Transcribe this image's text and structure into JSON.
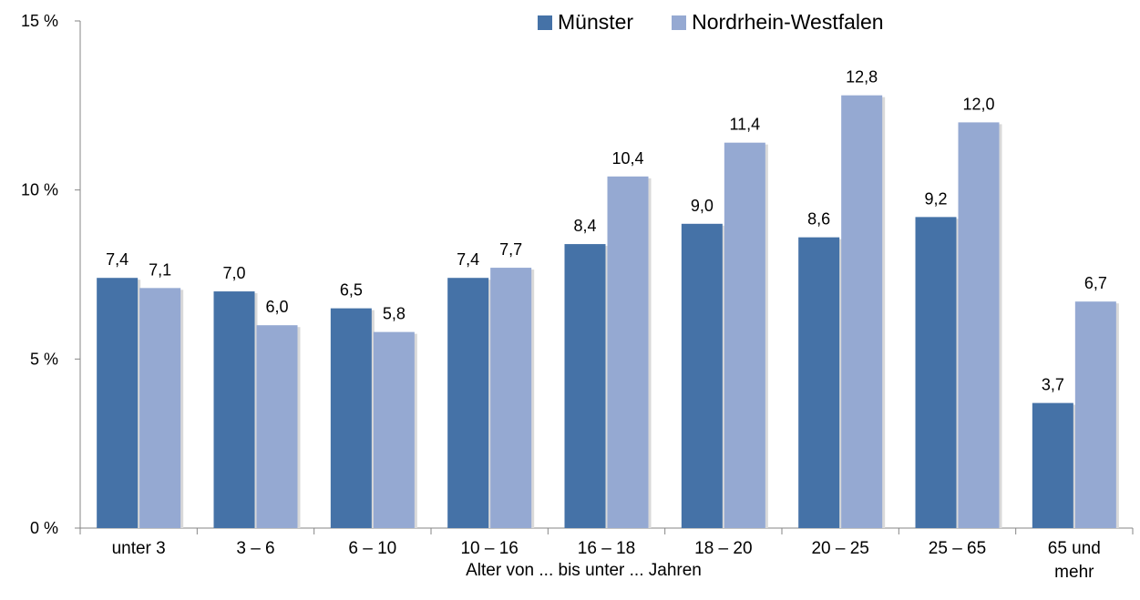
{
  "chart_data": {
    "type": "bar",
    "categories": [
      "unter 3",
      "3 –  6",
      "6 – 10",
      "10 – 16",
      "16 – 18",
      "18 – 20",
      "20 – 25",
      "25 – 65",
      "65 und mehr"
    ],
    "series": [
      {
        "name": "Münster",
        "values": [
          7.4,
          7.0,
          6.5,
          7.4,
          8.4,
          9.0,
          8.6,
          9.2,
          3.7
        ],
        "labels": [
          "7,4",
          "7,0",
          "6,5",
          "7,4",
          "8,4",
          "9,0",
          "8,6",
          "9,2",
          "3,7"
        ],
        "color": "#4572A7"
      },
      {
        "name": "Nordrhein-Westfalen",
        "values": [
          7.1,
          6.0,
          5.8,
          7.7,
          10.4,
          11.4,
          12.8,
          12.0,
          6.7
        ],
        "labels": [
          "7,1",
          "6,0",
          "5,8",
          "7,7",
          "10,4",
          "11,4",
          "12,8",
          "12,0",
          "6,7"
        ],
        "color": "#95A9D2"
      }
    ],
    "xlabel": "Alter von ... bis unter ... Jahren",
    "ylabel": "",
    "ylim": [
      0,
      15
    ],
    "yticks": [
      0,
      5,
      10,
      15
    ],
    "ytick_labels": [
      "0 %",
      "5 %",
      "10 %",
      "15 %"
    ],
    "legend_position": "top",
    "grid": false
  }
}
